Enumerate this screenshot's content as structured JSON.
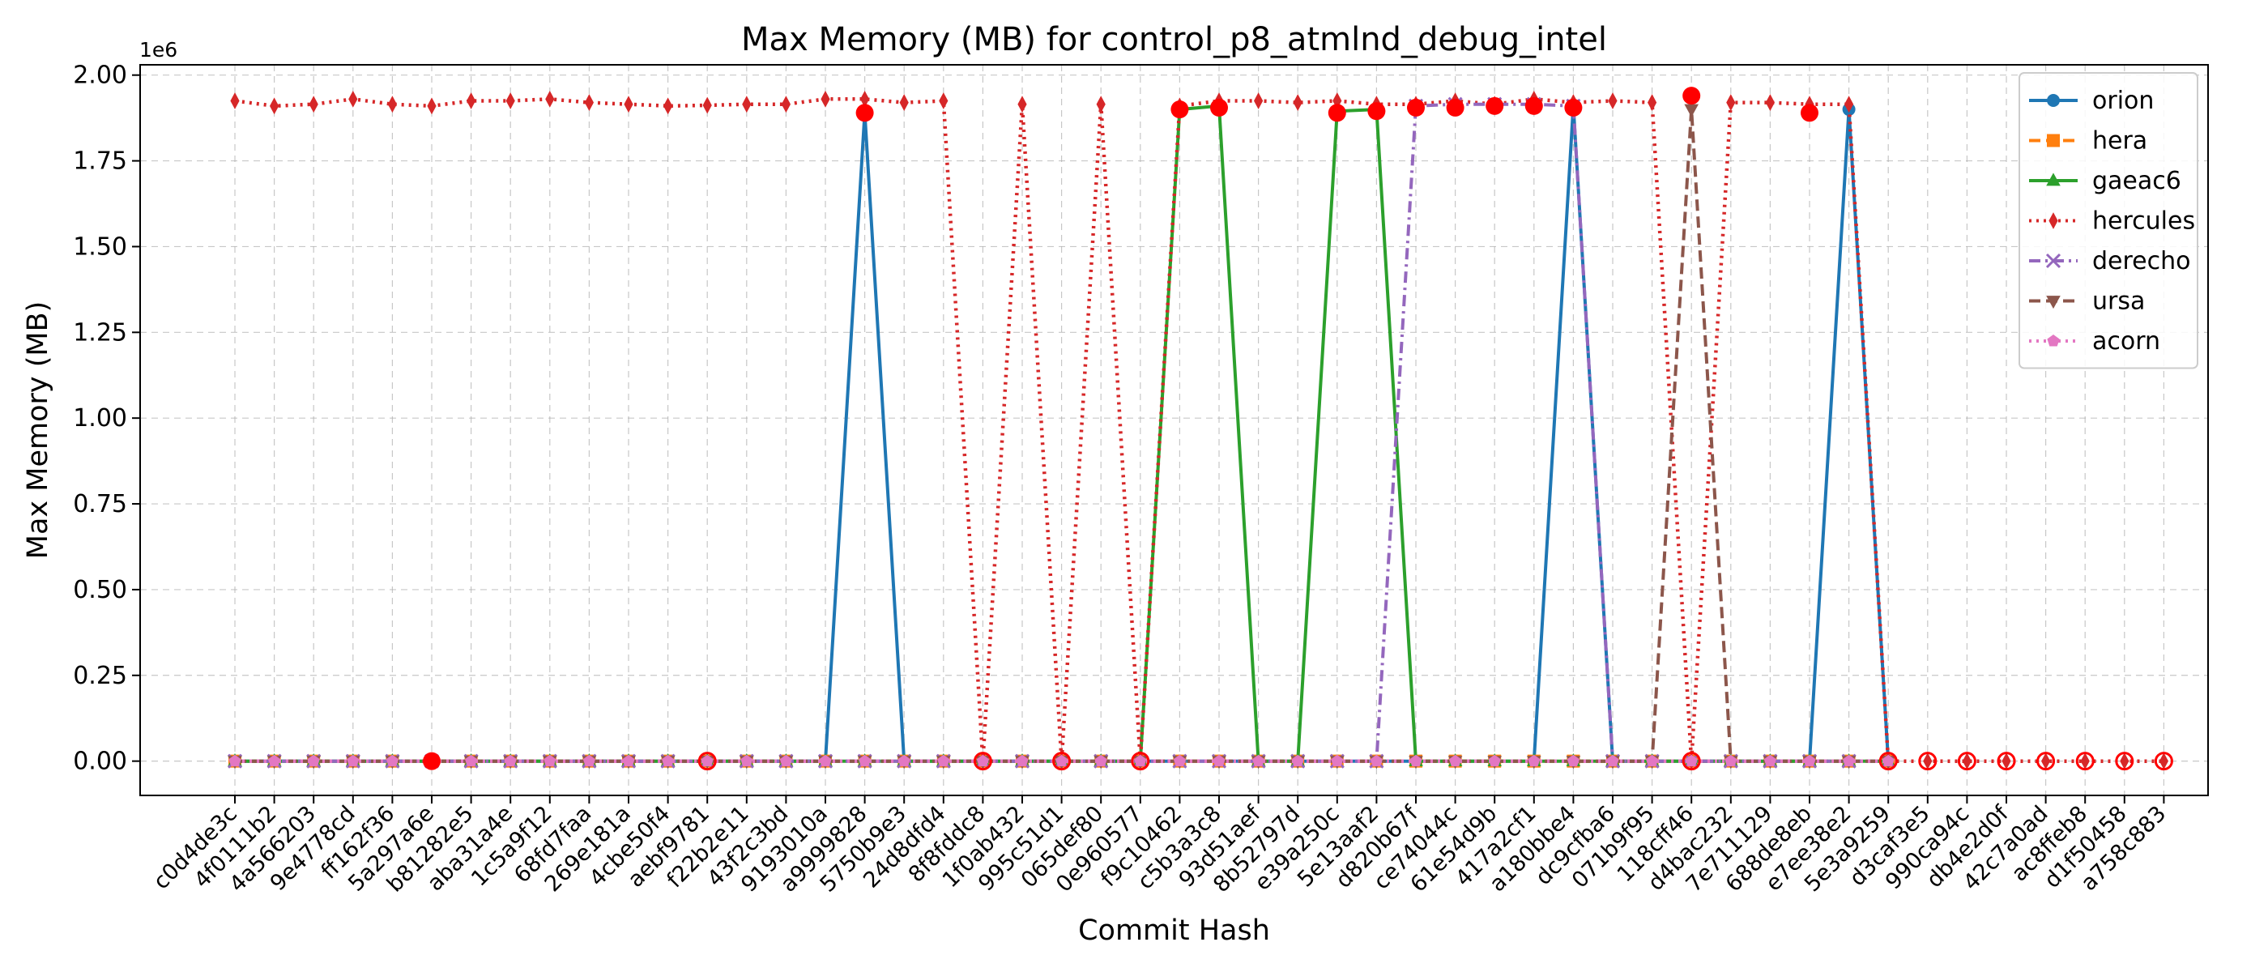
{
  "chart_data": {
    "type": "line",
    "title": "Max Memory (MB) for control_p8_atmlnd_debug_intel",
    "xlabel": "Commit Hash",
    "ylabel": "Max Memory (MB)",
    "y_offset_label": "1e6",
    "ylim": [
      -0.1,
      2.03
    ],
    "yticks": [
      "0.00",
      "0.25",
      "0.50",
      "0.75",
      "1.00",
      "1.25",
      "1.50",
      "1.75",
      "2.00"
    ],
    "grid": true,
    "legend_position": "top-right",
    "categories": [
      "c0d4de3c",
      "4f0111b2",
      "4a566203",
      "9e4778cd",
      "ff162f36",
      "5a297a6e",
      "b81282e5",
      "aba31a4e",
      "1c5a9f12",
      "68fd7faa",
      "269e181a",
      "4cbe50f4",
      "aebf9781",
      "f22b2e11",
      "43f2c3bd",
      "9193010a",
      "a9999828",
      "5750b9e3",
      "24d8dfd4",
      "8f8fddc8",
      "1f0ab432",
      "995c51d1",
      "065def80",
      "0e960577",
      "f9c10462",
      "c5b3a3c8",
      "93d51aef",
      "8b52797d",
      "e39a250c",
      "5e13aaf2",
      "d820b67f",
      "ce74044c",
      "61e54d9b",
      "417a2cf1",
      "a180bbe4",
      "dc9cfba6",
      "071b9f95",
      "118cff46",
      "d4bac232",
      "7e711129",
      "688de8eb",
      "e7ee38e2",
      "5e3a9259",
      "d3caf3e5",
      "990ca94c",
      "db4e2d0f",
      "42c7a0ad",
      "ac8ffeb8",
      "d1f50458",
      "a758c883"
    ],
    "series": [
      {
        "name": "orion",
        "color": "#1f77b4",
        "dash": "solid",
        "marker": "circle",
        "values": [
          0,
          0,
          0,
          0,
          0,
          0,
          0,
          0,
          0,
          0,
          0,
          0,
          0,
          0,
          0,
          0,
          1.89,
          0,
          0,
          0,
          0,
          0,
          0,
          0,
          0,
          0,
          0,
          0,
          0,
          0,
          0,
          0,
          0,
          0,
          1.91,
          0,
          0,
          0,
          0,
          0,
          0,
          1.9,
          0,
          null,
          null,
          null,
          null,
          null,
          null,
          null
        ]
      },
      {
        "name": "hera",
        "color": "#ff7f0e",
        "dash": "dashed",
        "marker": "square",
        "values": [
          0,
          0,
          0,
          0,
          0,
          0,
          0,
          0,
          0,
          0,
          0,
          0,
          0,
          0,
          0,
          0,
          0,
          0,
          0,
          0,
          0,
          0,
          0,
          0,
          0,
          0,
          0,
          0,
          0,
          0,
          0,
          0,
          0,
          0,
          0,
          0,
          0,
          0,
          0,
          0,
          0,
          0,
          0,
          null,
          null,
          null,
          null,
          null,
          null,
          null
        ]
      },
      {
        "name": "gaeac6",
        "color": "#2ca02c",
        "dash": "solid",
        "marker": "triangle-up",
        "values": [
          0,
          0,
          0,
          0,
          0,
          0,
          0,
          0,
          0,
          0,
          0,
          0,
          0,
          0,
          0,
          0,
          0,
          0,
          0,
          0,
          0,
          0,
          0,
          0,
          1.9,
          1.91,
          0,
          0,
          1.895,
          1.9,
          0,
          0,
          0,
          0,
          0,
          0,
          0,
          0,
          0,
          0,
          0,
          0,
          0,
          null,
          null,
          null,
          null,
          null,
          null,
          null
        ]
      },
      {
        "name": "hercules",
        "color": "#d62728",
        "dash": "dotted",
        "marker": "thin-diamond",
        "values": [
          1.925,
          1.91,
          1.915,
          1.93,
          1.915,
          1.91,
          1.925,
          1.925,
          1.93,
          1.92,
          1.915,
          1.91,
          1.912,
          1.915,
          1.915,
          1.93,
          1.93,
          1.92,
          1.925,
          0,
          1.915,
          0,
          1.915,
          0,
          1.91,
          1.925,
          1.925,
          1.92,
          1.925,
          1.915,
          1.915,
          1.925,
          1.915,
          1.93,
          1.92,
          1.925,
          1.92,
          0,
          1.92,
          1.92,
          1.915,
          1.915,
          0,
          0,
          0,
          0,
          0,
          0,
          0,
          0
        ]
      },
      {
        "name": "derecho",
        "color": "#9467bd",
        "dash": "dashdot",
        "marker": "x",
        "values": [
          0,
          0,
          0,
          0,
          0,
          0,
          0,
          0,
          0,
          0,
          0,
          0,
          0,
          0,
          0,
          0,
          0,
          0,
          0,
          0,
          0,
          0,
          0,
          0,
          0,
          0,
          0,
          0,
          0,
          0,
          1.91,
          1.915,
          1.915,
          1.915,
          1.91,
          0,
          0,
          0,
          0,
          0,
          0,
          0,
          0,
          null,
          null,
          null,
          null,
          null,
          null,
          null
        ]
      },
      {
        "name": "ursa",
        "color": "#8c564b",
        "dash": "dashed",
        "marker": "triangle-down",
        "values": [
          0,
          0,
          0,
          0,
          0,
          0,
          0,
          0,
          0,
          0,
          0,
          0,
          0,
          0,
          0,
          0,
          0,
          0,
          0,
          0,
          0,
          0,
          0,
          0,
          0,
          0,
          0,
          0,
          0,
          0,
          0,
          0,
          0,
          0,
          0,
          0,
          0,
          1.9,
          0,
          0,
          0,
          0,
          0,
          null,
          null,
          null,
          null,
          null,
          null,
          null
        ]
      },
      {
        "name": "acorn",
        "color": "#e377c2",
        "dash": "dotted",
        "marker": "pentagon",
        "values": [
          0,
          0,
          0,
          0,
          0,
          0,
          0,
          0,
          0,
          0,
          0,
          0,
          0,
          0,
          0,
          0,
          0,
          0,
          0,
          0,
          0,
          0,
          0,
          0,
          0,
          0,
          0,
          0,
          0,
          0,
          0,
          0,
          0,
          0,
          0,
          0,
          0,
          0,
          0,
          0,
          0,
          0,
          0,
          null,
          null,
          null,
          null,
          null,
          null,
          null
        ]
      }
    ],
    "highlight_points": {
      "color": "#ff0000",
      "filled": [
        {
          "x": "5a297a6e",
          "y": 0
        },
        {
          "x": "a9999828",
          "y": 1.89
        },
        {
          "x": "f9c10462",
          "y": 1.9
        },
        {
          "x": "c5b3a3c8",
          "y": 1.905
        },
        {
          "x": "e39a250c",
          "y": 1.89
        },
        {
          "x": "5e13aaf2",
          "y": 1.895
        },
        {
          "x": "d820b67f",
          "y": 1.905
        },
        {
          "x": "ce74044c",
          "y": 1.905
        },
        {
          "x": "61e54d9b",
          "y": 1.91
        },
        {
          "x": "417a2cf1",
          "y": 1.91
        },
        {
          "x": "a180bbe4",
          "y": 1.905
        },
        {
          "x": "118cff46",
          "y": 1.94
        },
        {
          "x": "688de8eb",
          "y": 1.89
        }
      ],
      "hollow": [
        {
          "x": "aebf9781",
          "y": 0
        },
        {
          "x": "8f8fddc8",
          "y": 0
        },
        {
          "x": "995c51d1",
          "y": 0
        },
        {
          "x": "0e960577",
          "y": 0
        },
        {
          "x": "118cff46",
          "y": 0
        },
        {
          "x": "5e3a9259",
          "y": 0
        },
        {
          "x": "d3caf3e5",
          "y": 0
        },
        {
          "x": "990ca94c",
          "y": 0
        },
        {
          "x": "db4e2d0f",
          "y": 0
        },
        {
          "x": "42c7a0ad",
          "y": 0
        },
        {
          "x": "ac8ffeb8",
          "y": 0
        },
        {
          "x": "d1f50458",
          "y": 0
        },
        {
          "x": "a758c883",
          "y": 0
        }
      ]
    }
  }
}
